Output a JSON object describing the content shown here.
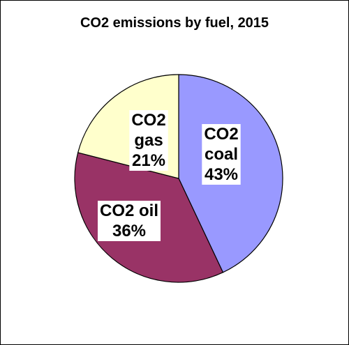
{
  "chart_data": {
    "type": "pie",
    "title": "CO2 emissions by fuel, 2015",
    "slices": [
      {
        "name": "CO2 coal",
        "label_lines": [
          "CO2",
          "coal",
          "43%"
        ],
        "value": 43,
        "color": "#9999ff"
      },
      {
        "name": "CO2 oil",
        "label_lines": [
          "CO2 oil",
          "36%"
        ],
        "value": 36,
        "color": "#993366"
      },
      {
        "name": "CO2 gas",
        "label_lines": [
          "CO2",
          "gas",
          "21%"
        ],
        "value": 21,
        "color": "#ffffcc"
      }
    ],
    "start": "12 o'clock",
    "direction": "clockwise",
    "legend": "none",
    "data_labels": "inside slices, white boxes"
  }
}
